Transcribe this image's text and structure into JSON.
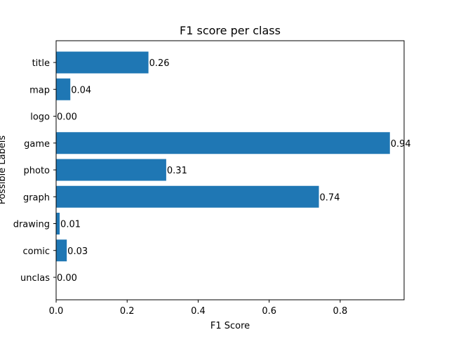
{
  "chart_data": {
    "type": "bar",
    "orientation": "horizontal",
    "title": "F1 score per class",
    "xlabel": "F1 Score",
    "ylabel": "Possible Labels",
    "categories": [
      "unclas",
      "comic",
      "drawing",
      "graph",
      "photo",
      "game",
      "logo",
      "map",
      "title"
    ],
    "values": [
      0.0,
      0.03,
      0.01,
      0.74,
      0.31,
      0.94,
      0.0,
      0.04,
      0.26
    ],
    "data_labels": [
      "0.00",
      "0.03",
      "0.01",
      "0.74",
      "0.31",
      "0.94",
      "0.00",
      "0.04",
      "0.26"
    ],
    "xlim": [
      0,
      0.98
    ],
    "xticks": [
      0.0,
      0.2,
      0.4,
      0.6,
      0.8
    ],
    "xtick_labels": [
      "0.0",
      "0.2",
      "0.4",
      "0.6",
      "0.8"
    ],
    "bar_color": "#1f77b4",
    "grid": false,
    "legend": "none"
  }
}
